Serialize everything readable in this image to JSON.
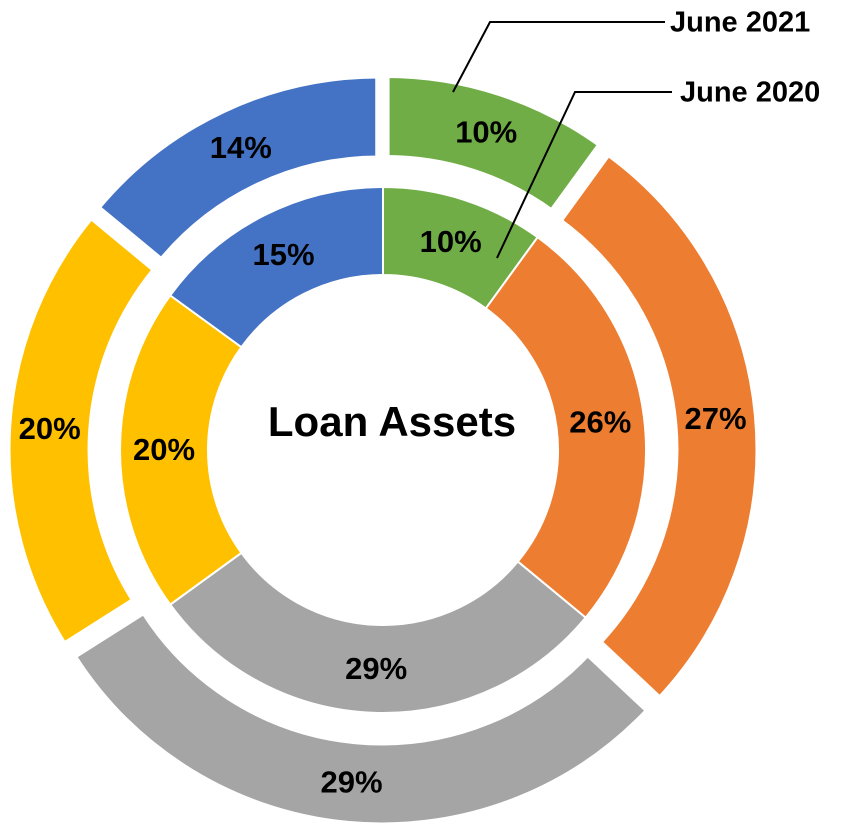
{
  "chart_data": {
    "type": "donut",
    "title": "Loan Assets",
    "colors": [
      "#70ad47",
      "#ed7d31",
      "#a5a5a5",
      "#ffc000",
      "#4472c4"
    ],
    "series": [
      {
        "name": "June 2021",
        "values": [
          10,
          27,
          29,
          20,
          14
        ],
        "value_labels": [
          "10%",
          "27%",
          "29%",
          "20%",
          "14%"
        ]
      },
      {
        "name": "June 2020",
        "values": [
          10,
          26,
          29,
          20,
          15
        ],
        "value_labels": [
          "10%",
          "26%",
          "29%",
          "20%",
          "15%"
        ]
      }
    ]
  }
}
